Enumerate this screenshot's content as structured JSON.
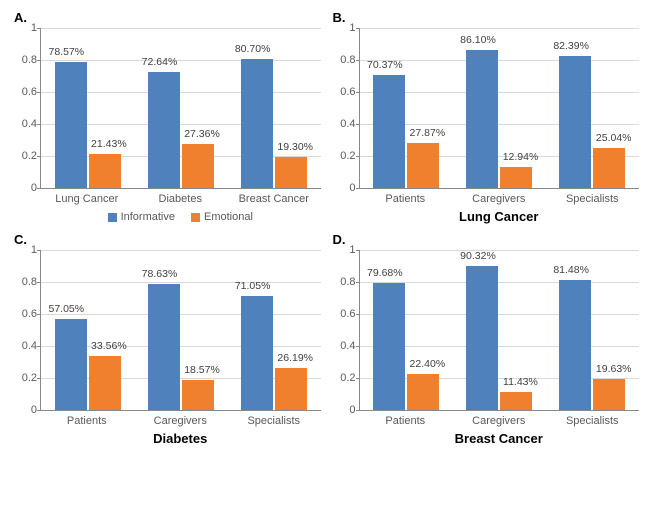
{
  "colors": {
    "informative": "#4f81bd",
    "emotional": "#f07f2e",
    "grid": "#d9d9d9",
    "axis": "#888888",
    "bg": "#ffffff"
  },
  "legend": {
    "informative": "Informative",
    "emotional": "Emotional"
  },
  "yaxis": {
    "min": 0,
    "max": 1,
    "step": 0.2,
    "ticks": [
      "0",
      "0.2",
      "0.4",
      "0.6",
      "0.8",
      "1"
    ]
  },
  "panels": {
    "A": {
      "letter": "A.",
      "title": "",
      "show_legend": true,
      "categories": [
        "Lung Cancer",
        "Diabetes",
        "Breast Cancer"
      ],
      "series": [
        {
          "key": "informative",
          "values": [
            0.7857,
            0.7264,
            0.807
          ],
          "labels": [
            "78.57%",
            "72.64%",
            "80.70%"
          ]
        },
        {
          "key": "emotional",
          "values": [
            0.2143,
            0.2736,
            0.193
          ],
          "labels": [
            "21.43%",
            "27.36%",
            "19.30%"
          ]
        }
      ]
    },
    "B": {
      "letter": "B.",
      "title": "Lung Cancer",
      "show_legend": false,
      "categories": [
        "Patients",
        "Caregivers",
        "Specialists"
      ],
      "series": [
        {
          "key": "informative",
          "values": [
            0.7037,
            0.861,
            0.8239
          ],
          "labels": [
            "70.37%",
            "86.10%",
            "82.39%"
          ]
        },
        {
          "key": "emotional",
          "values": [
            0.2787,
            0.1294,
            0.2504
          ],
          "labels": [
            "27.87%",
            "12.94%",
            "25.04%"
          ]
        }
      ]
    },
    "C": {
      "letter": "C.",
      "title": "Diabetes",
      "show_legend": false,
      "categories": [
        "Patients",
        "Caregivers",
        "Specialists"
      ],
      "series": [
        {
          "key": "informative",
          "values": [
            0.5705,
            0.7863,
            0.7105
          ],
          "labels": [
            "57.05%",
            "78.63%",
            "71.05%"
          ]
        },
        {
          "key": "emotional",
          "values": [
            0.3356,
            0.1857,
            0.2619
          ],
          "labels": [
            "33.56%",
            "18.57%",
            "26.19%"
          ]
        }
      ]
    },
    "D": {
      "letter": "D.",
      "title": "Breast Cancer",
      "show_legend": false,
      "categories": [
        "Patients",
        "Caregivers",
        "Specialists"
      ],
      "series": [
        {
          "key": "informative",
          "values": [
            0.7968,
            0.9032,
            0.8148
          ],
          "labels": [
            "79.68%",
            "90.32%",
            "81.48%"
          ]
        },
        {
          "key": "emotional",
          "values": [
            0.224,
            0.1143,
            0.1963
          ],
          "labels": [
            "22.40%",
            "11.43%",
            "19.63%"
          ]
        }
      ]
    }
  }
}
